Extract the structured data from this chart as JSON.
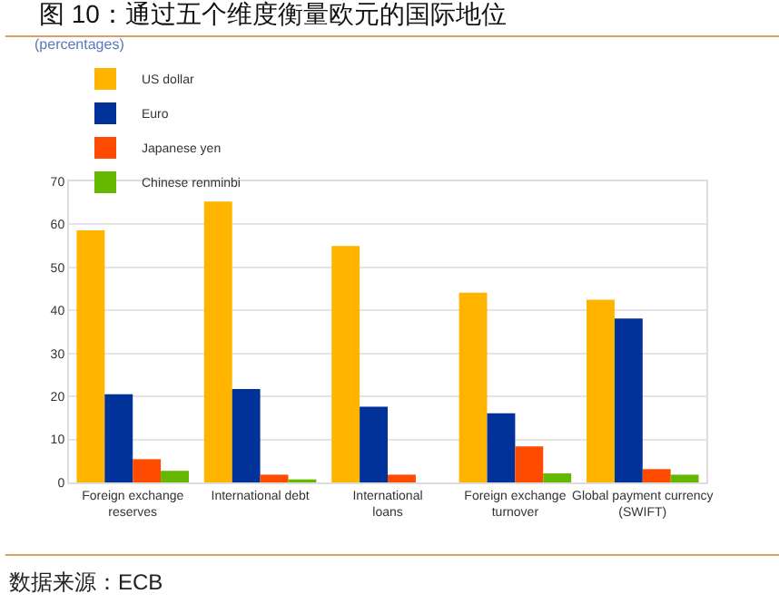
{
  "chart_data": {
    "type": "bar",
    "title": "图 10：通过五个维度衡量欧元的国际地位",
    "subtitle": "(percentages)",
    "categories": [
      "Foreign exchange reserves",
      "International debt",
      "International loans",
      "Foreign exchange turnover",
      "Global payment currency (SWIFT)"
    ],
    "series": [
      {
        "name": "US dollar",
        "color": "#ffb400",
        "values": [
          58.6,
          65.3,
          55.0,
          44.1,
          42.5
        ]
      },
      {
        "name": "Euro",
        "color": "#003299",
        "values": [
          20.5,
          21.7,
          17.6,
          16.1,
          38.1
        ]
      },
      {
        "name": "Japanese yen",
        "color": "#ff4b00",
        "values": [
          5.4,
          1.8,
          1.8,
          8.4,
          3.1
        ]
      },
      {
        "name": "Chinese renminbi",
        "color": "#65b800",
        "values": [
          2.7,
          0.7,
          null,
          2.1,
          1.8
        ]
      }
    ],
    "ylim": [
      0,
      70
    ],
    "yticks": [
      0,
      10,
      20,
      30,
      40,
      50,
      60,
      70
    ],
    "grid": "y",
    "legend": "top left",
    "annotations": [
      "数据来源：ECB"
    ]
  }
}
